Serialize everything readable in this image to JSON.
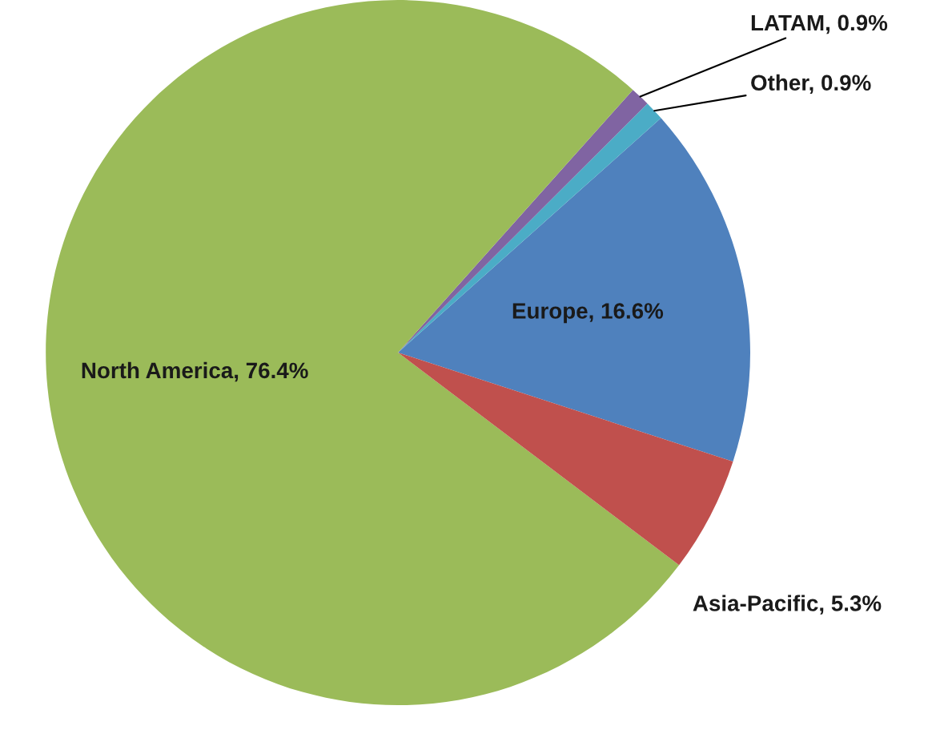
{
  "chart_data": {
    "type": "pie",
    "categories": [
      "Europe",
      "Other",
      "LATAM",
      "North America",
      "Asia-Pacific"
    ],
    "values": [
      16.6,
      0.9,
      0.9,
      76.4,
      5.3
    ],
    "colors": [
      "#4f81bd",
      "#4bacc6",
      "#8064a2",
      "#9bbb59",
      "#c0504d"
    ],
    "value_labels": [
      "16.6%",
      "0.9%",
      "0.9%",
      "76.4%",
      "5.3%"
    ]
  }
}
